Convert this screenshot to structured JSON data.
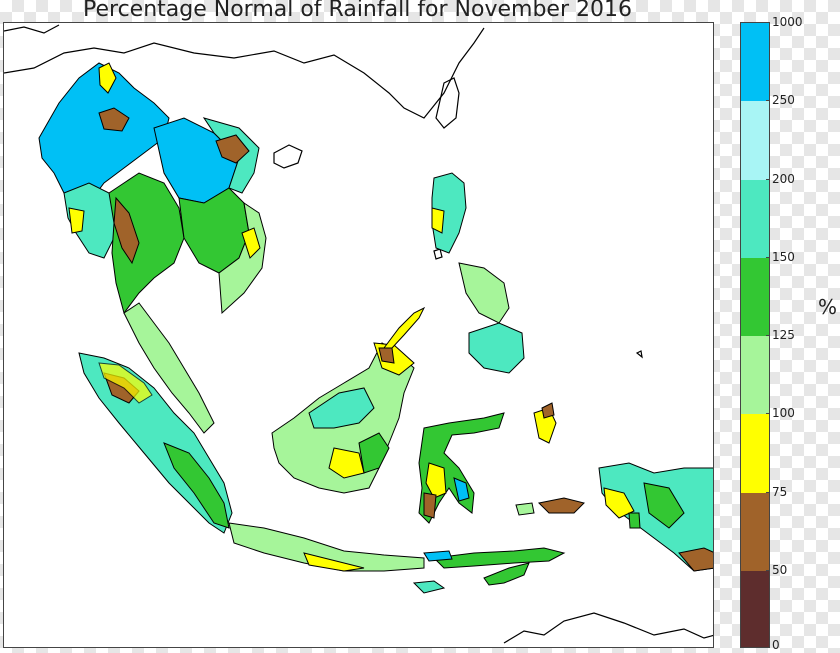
{
  "title": "Percentage Normal of Rainfall for November 2016",
  "colorbar": {
    "unit": "%",
    "ticks": [
      "0",
      "50",
      "75",
      "100",
      "125",
      "150",
      "200",
      "250",
      "1000"
    ],
    "colors": [
      "#5e2d2d",
      "#a0632a",
      "#ffff00",
      "#a6f59a",
      "#33c733",
      "#4de8c0",
      "#a8f5f5",
      "#00c0f5"
    ]
  },
  "map": {
    "land_outline_color": "#000000",
    "ocean_color": "#ffffff"
  }
}
